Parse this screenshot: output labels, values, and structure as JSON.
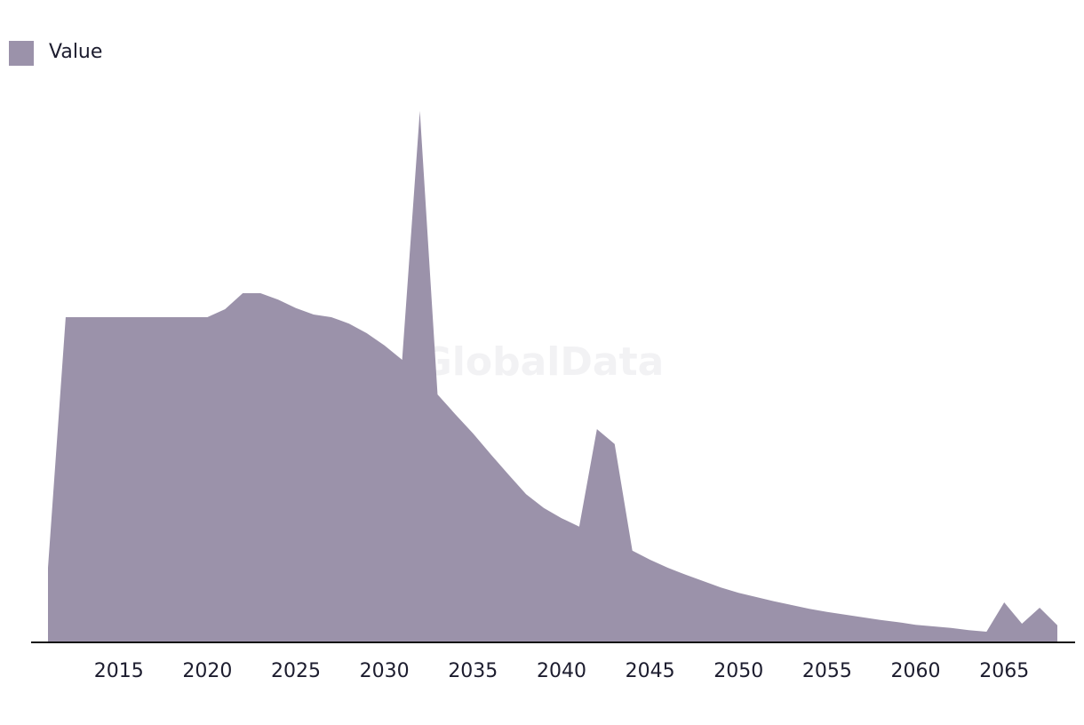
{
  "chart_data": {
    "type": "area",
    "watermark": "GlobalData",
    "x": [
      2011,
      2012,
      2013,
      2014,
      2015,
      2016,
      2017,
      2018,
      2019,
      2020,
      2021,
      2022,
      2023,
      2024,
      2025,
      2026,
      2027,
      2028,
      2029,
      2030,
      2031,
      2032,
      2033,
      2034,
      2035,
      2036,
      2037,
      2038,
      2039,
      2040,
      2041,
      2042,
      2043,
      2044,
      2045,
      2046,
      2047,
      2048,
      2049,
      2050,
      2051,
      2052,
      2053,
      2054,
      2055,
      2056,
      2057,
      2058,
      2059,
      2060,
      2061,
      2062,
      2063,
      2064,
      2065,
      2066,
      2067,
      2068
    ],
    "series": [
      {
        "name": "Value",
        "color": "#9b92aa",
        "values": [
          14,
          61,
          61,
          61,
          61,
          61,
          61,
          61,
          61,
          61,
          62.5,
          65.5,
          65.5,
          64.3,
          62.7,
          61.5,
          61,
          59.8,
          58,
          55.7,
          53,
          99.7,
          46.5,
          42.8,
          39.2,
          35.3,
          31.5,
          27.8,
          25.2,
          23.3,
          21.7,
          40,
          37.2,
          17.2,
          15.5,
          14,
          12.7,
          11.5,
          10.3,
          9.3,
          8.5,
          7.7,
          7,
          6.3,
          5.7,
          5.2,
          4.7,
          4.2,
          3.8,
          3.3,
          3,
          2.7,
          2.3,
          2,
          7.5,
          3.5,
          6.5,
          3.2
        ]
      }
    ],
    "xlim": [
      2011,
      2068
    ],
    "ylim": [
      0,
      100
    ],
    "xticks": [
      2015,
      2020,
      2025,
      2030,
      2035,
      2040,
      2045,
      2050,
      2055,
      2060,
      2065
    ],
    "legend": "top-left"
  }
}
